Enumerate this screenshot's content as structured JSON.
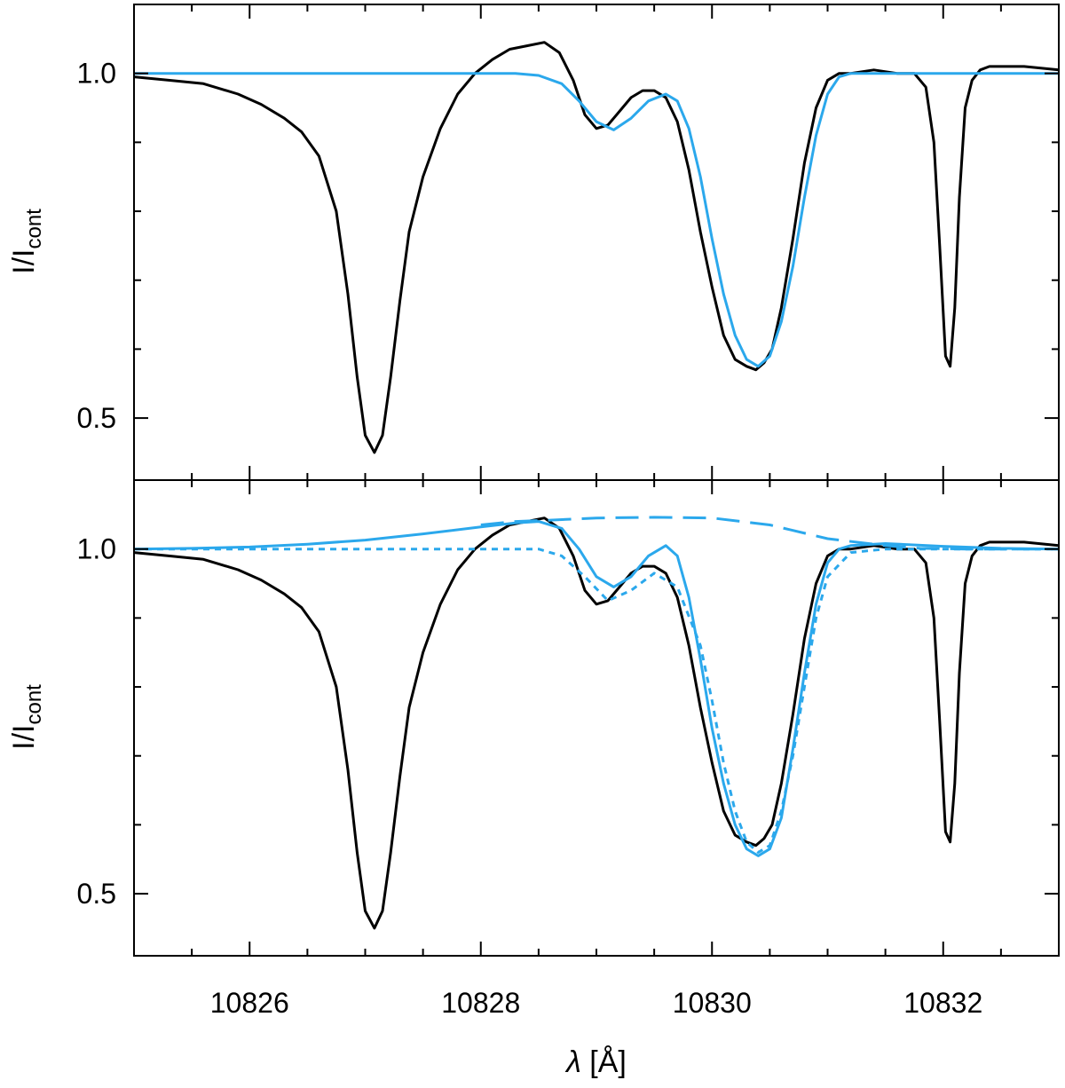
{
  "colors": {
    "observed": "#000000",
    "model": "#2BA8EC"
  },
  "x_axis": {
    "label_var": "λ",
    "label_unit": "[Å]",
    "range": [
      10825,
      10833
    ],
    "major_ticks": [
      10826,
      10828,
      10830,
      10832
    ],
    "tick_labels": [
      "10826",
      "10828",
      "10830",
      "10832"
    ],
    "minor_step": 0.5
  },
  "y_axis": {
    "label_main": "I/I",
    "label_sub": "cont",
    "range": [
      0.41,
      1.1
    ],
    "labeled_ticks": [
      1.0,
      0.5
    ],
    "tick_labels": [
      "1.0",
      "0.5"
    ],
    "minor_ticks": [
      0.6,
      0.7,
      0.8,
      0.9,
      1.1
    ]
  },
  "chart_data": [
    {
      "type": "line",
      "panel": "top",
      "xlim": [
        10825,
        10833
      ],
      "ylim": [
        0.41,
        1.1
      ],
      "series": [
        {
          "style": "solid",
          "color": "#000000",
          "x": [
            10825.0,
            10825.3,
            10825.6,
            10825.9,
            10826.1,
            10826.3,
            10826.45,
            10826.6,
            10826.75,
            10826.85,
            10826.93,
            10827.0,
            10827.08,
            10827.15,
            10827.22,
            10827.3,
            10827.38,
            10827.5,
            10827.65,
            10827.8,
            10827.95,
            10828.1,
            10828.25,
            10828.4,
            10828.55,
            10828.68,
            10828.8,
            10828.9,
            10829.0,
            10829.1,
            10829.2,
            10829.3,
            10829.4,
            10829.5,
            10829.6,
            10829.7,
            10829.8,
            10829.9,
            10830.0,
            10830.1,
            10830.2,
            10830.3,
            10830.38,
            10830.45,
            10830.52,
            10830.6,
            10830.7,
            10830.8,
            10830.9,
            10831.0,
            10831.1,
            10831.2,
            10831.4,
            10831.6,
            10831.75,
            10831.85,
            10831.92,
            10831.97,
            10832.02,
            10832.06,
            10832.1,
            10832.14,
            10832.19,
            10832.25,
            10832.32,
            10832.4,
            10832.5,
            10832.7,
            10833.0
          ],
          "y": [
            0.995,
            0.99,
            0.985,
            0.97,
            0.955,
            0.935,
            0.915,
            0.88,
            0.8,
            0.68,
            0.56,
            0.475,
            0.45,
            0.475,
            0.56,
            0.67,
            0.77,
            0.85,
            0.92,
            0.97,
            1.0,
            1.02,
            1.035,
            1.04,
            1.045,
            1.03,
            0.99,
            0.94,
            0.92,
            0.925,
            0.945,
            0.965,
            0.975,
            0.975,
            0.965,
            0.93,
            0.86,
            0.77,
            0.69,
            0.62,
            0.585,
            0.575,
            0.57,
            0.58,
            0.6,
            0.66,
            0.76,
            0.87,
            0.95,
            0.99,
            1.0,
            1.0,
            1.005,
            1.0,
            1.0,
            0.98,
            0.9,
            0.75,
            0.59,
            0.575,
            0.66,
            0.82,
            0.95,
            0.99,
            1.005,
            1.01,
            1.01,
            1.01,
            1.005
          ]
        },
        {
          "style": "solid",
          "color": "#2BA8EC",
          "x": [
            10825.0,
            10828.0,
            10828.3,
            10828.5,
            10828.7,
            10828.85,
            10829.0,
            10829.15,
            10829.3,
            10829.45,
            10829.6,
            10829.7,
            10829.8,
            10829.9,
            10830.0,
            10830.1,
            10830.2,
            10830.3,
            10830.4,
            10830.5,
            10830.6,
            10830.7,
            10830.8,
            10830.9,
            10831.0,
            10831.1,
            10831.2,
            10831.5,
            10833.0
          ],
          "y": [
            1.0,
            1.0,
            1.0,
            0.997,
            0.985,
            0.96,
            0.93,
            0.918,
            0.935,
            0.96,
            0.97,
            0.96,
            0.92,
            0.85,
            0.76,
            0.68,
            0.62,
            0.585,
            0.575,
            0.59,
            0.64,
            0.72,
            0.82,
            0.91,
            0.97,
            0.995,
            1.0,
            1.0,
            1.0
          ]
        }
      ]
    },
    {
      "type": "line",
      "panel": "bottom",
      "xlim": [
        10825,
        10833
      ],
      "ylim": [
        0.41,
        1.1
      ],
      "series": [
        {
          "style": "solid",
          "color": "#000000",
          "x": [
            10825.0,
            10825.3,
            10825.6,
            10825.9,
            10826.1,
            10826.3,
            10826.45,
            10826.6,
            10826.75,
            10826.85,
            10826.93,
            10827.0,
            10827.08,
            10827.15,
            10827.22,
            10827.3,
            10827.38,
            10827.5,
            10827.65,
            10827.8,
            10827.95,
            10828.1,
            10828.25,
            10828.4,
            10828.55,
            10828.68,
            10828.8,
            10828.9,
            10829.0,
            10829.1,
            10829.2,
            10829.3,
            10829.4,
            10829.5,
            10829.6,
            10829.7,
            10829.8,
            10829.9,
            10830.0,
            10830.1,
            10830.2,
            10830.3,
            10830.38,
            10830.45,
            10830.52,
            10830.6,
            10830.7,
            10830.8,
            10830.9,
            10831.0,
            10831.1,
            10831.2,
            10831.4,
            10831.6,
            10831.75,
            10831.85,
            10831.92,
            10831.97,
            10832.02,
            10832.06,
            10832.1,
            10832.14,
            10832.19,
            10832.25,
            10832.32,
            10832.4,
            10832.5,
            10832.7,
            10833.0
          ],
          "y": [
            0.995,
            0.99,
            0.985,
            0.97,
            0.955,
            0.935,
            0.915,
            0.88,
            0.8,
            0.68,
            0.56,
            0.475,
            0.45,
            0.475,
            0.56,
            0.67,
            0.77,
            0.85,
            0.92,
            0.97,
            1.0,
            1.02,
            1.035,
            1.04,
            1.045,
            1.03,
            0.99,
            0.94,
            0.92,
            0.925,
            0.945,
            0.965,
            0.975,
            0.975,
            0.965,
            0.93,
            0.86,
            0.77,
            0.69,
            0.62,
            0.585,
            0.575,
            0.57,
            0.58,
            0.6,
            0.66,
            0.76,
            0.87,
            0.95,
            0.99,
            1.0,
            1.0,
            1.005,
            1.0,
            1.0,
            0.98,
            0.9,
            0.75,
            0.59,
            0.575,
            0.66,
            0.82,
            0.95,
            0.99,
            1.005,
            1.01,
            1.01,
            1.01,
            1.005
          ]
        },
        {
          "style": "solid",
          "color": "#2BA8EC",
          "x": [
            10825.0,
            10825.5,
            10826.0,
            10826.5,
            10827.0,
            10827.5,
            10828.0,
            10828.3,
            10828.5,
            10828.7,
            10828.85,
            10829.0,
            10829.15,
            10829.3,
            10829.45,
            10829.6,
            10829.7,
            10829.8,
            10829.9,
            10830.0,
            10830.1,
            10830.2,
            10830.3,
            10830.4,
            10830.5,
            10830.6,
            10830.7,
            10830.8,
            10830.9,
            10831.0,
            10831.1,
            10831.2,
            10831.5,
            10832.0,
            10832.5,
            10833.0
          ],
          "y": [
            1.0,
            1.001,
            1.003,
            1.007,
            1.013,
            1.022,
            1.032,
            1.038,
            1.04,
            1.03,
            1.0,
            0.96,
            0.945,
            0.96,
            0.99,
            1.005,
            0.99,
            0.93,
            0.84,
            0.74,
            0.66,
            0.6,
            0.565,
            0.555,
            0.565,
            0.61,
            0.71,
            0.82,
            0.92,
            0.98,
            1.0,
            1.005,
            1.008,
            1.004,
            1.001,
            1.0
          ]
        },
        {
          "style": "dashed",
          "color": "#2BA8EC",
          "x": [
            10825.0,
            10826.5,
            10827.5,
            10828.0,
            10828.3,
            10828.5,
            10828.7,
            10828.9,
            10829.1,
            10829.3,
            10829.5,
            10829.7,
            10829.9,
            10830.0,
            10830.1,
            10830.2,
            10830.3,
            10830.4,
            10830.5,
            10830.6,
            10830.7,
            10830.8,
            10830.9,
            10831.0,
            10831.2,
            10831.5,
            10832.0,
            10833.0
          ],
          "y": [
            1.0,
            1.0,
            1.0,
            1.0,
            1.0,
            1.0,
            0.99,
            0.96,
            0.925,
            0.94,
            0.965,
            0.945,
            0.86,
            0.78,
            0.69,
            0.62,
            0.575,
            0.56,
            0.57,
            0.62,
            0.7,
            0.8,
            0.9,
            0.96,
            0.995,
            1.0,
            1.0,
            1.0
          ]
        },
        {
          "style": "longdash",
          "color": "#2BA8EC",
          "x": [
            10828.0,
            10828.3,
            10828.6,
            10829.0,
            10829.5,
            10830.0,
            10830.5,
            10831.0,
            10831.5,
            10831.8,
            10832.2,
            10833.0
          ],
          "y": [
            1.035,
            1.04,
            1.042,
            1.045,
            1.046,
            1.045,
            1.035,
            1.015,
            1.005,
            1.001,
            1.0,
            1.0
          ]
        }
      ]
    }
  ]
}
